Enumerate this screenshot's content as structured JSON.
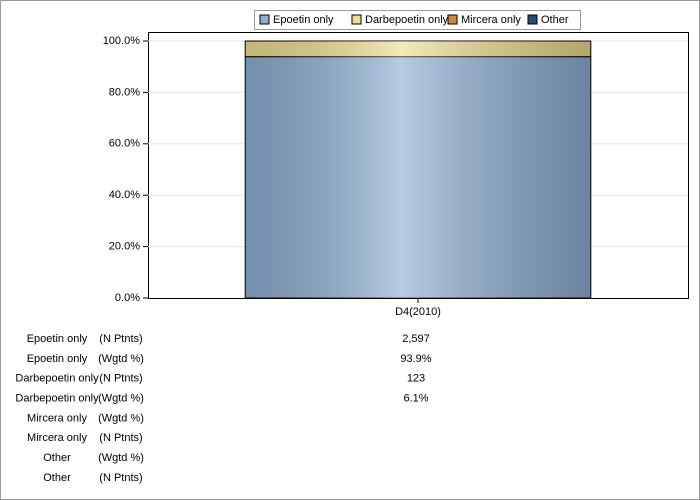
{
  "chart_data": {
    "type": "stacked_bar",
    "categories": [
      "D4(2010)"
    ],
    "series": [
      {
        "name": "Epoetin only",
        "color": "#8fb0d4",
        "values": [
          93.9
        ]
      },
      {
        "name": "Darbepoetin only",
        "color": "#efdf8f",
        "values": [
          6.1
        ]
      },
      {
        "name": "Mircera only",
        "color": "#d4893a",
        "values": [
          null
        ]
      },
      {
        "name": "Other",
        "color": "#1f4e7a",
        "values": [
          null
        ]
      }
    ],
    "ylim": [
      0,
      100
    ],
    "yticks": [
      {
        "value": 0,
        "label": "0.0%"
      },
      {
        "value": 20,
        "label": "20.0%"
      },
      {
        "value": 40,
        "label": "40.0%"
      },
      {
        "value": 60,
        "label": "60.0%"
      },
      {
        "value": 80,
        "label": "80.0%"
      },
      {
        "value": 100,
        "label": "100.0%"
      }
    ],
    "grid": true,
    "legend": "top",
    "table": {
      "rows": [
        {
          "label": "Epoetin only",
          "unit": "(N Ptnts)",
          "value": "2,597"
        },
        {
          "label": "Epoetin only",
          "unit": "(Wgtd %)",
          "value": "93.9%"
        },
        {
          "label": "Darbepoetin only",
          "unit": "(N Ptnts)",
          "value": "123"
        },
        {
          "label": "Darbepoetin only",
          "unit": "(Wgtd %)",
          "value": "6.1%"
        },
        {
          "label": "Mircera only",
          "unit": "(Wgtd %)",
          "value": null
        },
        {
          "label": "Mircera only",
          "unit": "(N Ptnts)",
          "value": null
        },
        {
          "label": "Other",
          "unit": "(Wgtd %)",
          "value": null
        },
        {
          "label": "Other",
          "unit": "(N Ptnts)",
          "value": null
        }
      ]
    }
  }
}
